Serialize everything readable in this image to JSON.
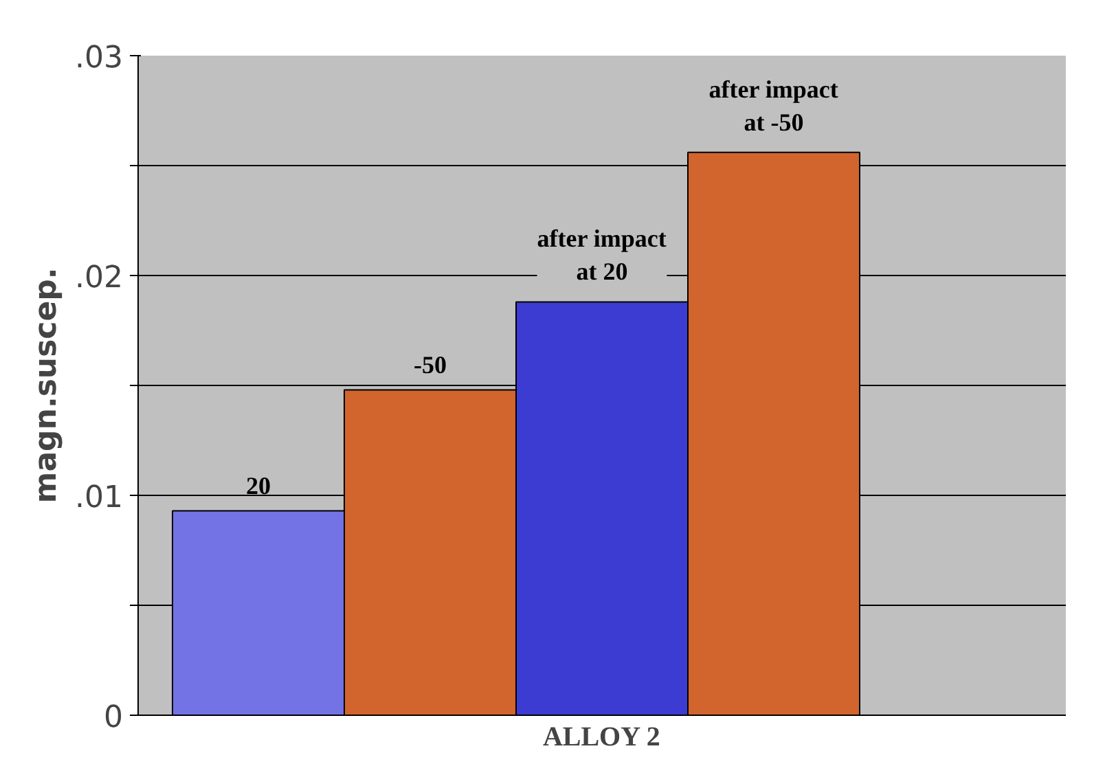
{
  "chart_data": {
    "type": "bar",
    "xlabel": "ALLOY 2",
    "ylabel": "magn.suscep.",
    "categories": [
      null
    ],
    "series": [
      {
        "name": "20",
        "color": "#7373e6",
        "values": [
          0.0093
        ]
      },
      {
        "name": "-50",
        "color": "#d2642d",
        "values": [
          0.0148
        ]
      },
      {
        "name": "after impact at 20",
        "color": "#3c3cd2",
        "values": [
          0.0188
        ]
      },
      {
        "name": "after impact at -50",
        "color": "#d2642d",
        "values": [
          0.0256
        ]
      }
    ],
    "ylim": [
      0,
      0.03
    ],
    "yticks": [
      0,
      {
        "value": 0.005,
        "label": null
      },
      {
        "value": 0.01,
        "label": ".01"
      },
      {
        "value": 0.015,
        "label": null
      },
      {
        "value": 0.02,
        "label": ".02"
      },
      {
        "value": 0.025,
        "label": null
      },
      {
        "value": 0.03,
        "label": ".03"
      }
    ],
    "grid": "y"
  }
}
